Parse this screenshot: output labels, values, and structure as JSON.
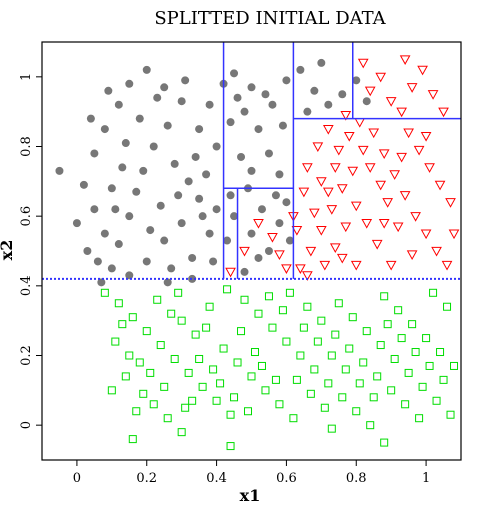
{
  "chart_data": {
    "type": "scatter",
    "title": "SPLITTED INITIAL DATA",
    "xlabel": "x1",
    "ylabel": "x2",
    "xlim": [
      -0.1,
      1.1
    ],
    "ylim": [
      -0.1,
      1.1
    ],
    "xticks": [
      0,
      0.2,
      0.4,
      0.6,
      0.8,
      1
    ],
    "xtick_labels": [
      "0",
      "0.2",
      "0.4",
      "0.6",
      "0.8",
      "1"
    ],
    "yticks": [
      0,
      0.2,
      0.4,
      0.6,
      0.8,
      1
    ],
    "ytick_labels": [
      "0",
      "0.2",
      "0.4",
      "0.6",
      "0.8",
      "1"
    ],
    "grid": false,
    "colors": {
      "gray": "#777777",
      "red": "#ff0000",
      "green": "#00dd00",
      "split_lines": "#3333ff",
      "frame": "#000000"
    },
    "split_lines": {
      "horizontal_dotted": {
        "y": 0.42,
        "x_from": -0.1,
        "x_to": 1.1
      },
      "vertical": [
        {
          "x": 0.42,
          "y_from": 0.42,
          "y_to": 1.1
        },
        {
          "x": 0.46,
          "y_from": 0.42,
          "y_to": 0.68
        },
        {
          "x": 0.62,
          "y_from": 0.42,
          "y_to": 1.1
        },
        {
          "x": 0.79,
          "y_from": 0.88,
          "y_to": 1.1
        }
      ],
      "horizontal": [
        {
          "y": 0.68,
          "x_from": 0.42,
          "x_to": 0.62
        },
        {
          "y": 0.88,
          "x_from": 0.62,
          "x_to": 1.1
        }
      ]
    },
    "series": [
      {
        "marker": "filled-circle",
        "color": "#777777",
        "points": [
          [
            -0.05,
            0.73
          ],
          [
            0.02,
            0.69
          ],
          [
            0.05,
            0.62
          ],
          [
            0.08,
            0.55
          ],
          [
            0.03,
            0.5
          ],
          [
            0.1,
            0.45
          ],
          [
            0.12,
            0.52
          ],
          [
            0.15,
            0.6
          ],
          [
            0.1,
            0.68
          ],
          [
            0.05,
            0.78
          ],
          [
            0.08,
            0.85
          ],
          [
            0.12,
            0.92
          ],
          [
            0.15,
            0.98
          ],
          [
            0.2,
            1.02
          ],
          [
            0.25,
            0.97
          ],
          [
            0.3,
            0.93
          ],
          [
            0.18,
            0.88
          ],
          [
            0.22,
            0.8
          ],
          [
            0.28,
            0.75
          ],
          [
            0.32,
            0.7
          ],
          [
            0.35,
            0.65
          ],
          [
            0.3,
            0.58
          ],
          [
            0.25,
            0.53
          ],
          [
            0.2,
            0.47
          ],
          [
            0.15,
            0.43
          ],
          [
            0.27,
            0.45
          ],
          [
            0.33,
            0.48
          ],
          [
            0.38,
            0.55
          ],
          [
            0.4,
            0.62
          ],
          [
            0.37,
            0.72
          ],
          [
            0.4,
            0.8
          ],
          [
            0.35,
            0.85
          ],
          [
            0.38,
            0.92
          ],
          [
            0.42,
            0.98
          ],
          [
            0.45,
            1.01
          ],
          [
            0.5,
            0.97
          ],
          [
            0.48,
            0.9
          ],
          [
            0.52,
            0.85
          ],
          [
            0.55,
            0.78
          ],
          [
            0.58,
            0.72
          ],
          [
            0.5,
            0.73
          ],
          [
            0.47,
            0.77
          ],
          [
            0.44,
            0.66
          ],
          [
            0.45,
            0.6
          ],
          [
            0.5,
            0.55
          ],
          [
            0.52,
            0.48
          ],
          [
            0.48,
            0.44
          ],
          [
            0.55,
            0.5
          ],
          [
            0.58,
            0.58
          ],
          [
            0.6,
            0.64
          ],
          [
            0.56,
            0.92
          ],
          [
            0.6,
            0.99
          ],
          [
            0.64,
            1.02
          ],
          [
            0.68,
            0.96
          ],
          [
            0.72,
            0.92
          ],
          [
            0.76,
            0.95
          ],
          [
            0.8,
            0.99
          ],
          [
            0.83,
            0.93
          ],
          [
            0.7,
            1.04
          ],
          [
            0.66,
            0.9
          ],
          [
            0.0,
            0.58
          ],
          [
            0.06,
            0.47
          ],
          [
            0.13,
            0.74
          ],
          [
            0.17,
            0.67
          ],
          [
            0.24,
            0.63
          ],
          [
            0.29,
            0.66
          ],
          [
            0.34,
            0.77
          ],
          [
            0.26,
            0.86
          ],
          [
            0.31,
            0.99
          ],
          [
            0.09,
            0.96
          ],
          [
            0.04,
            0.88
          ],
          [
            0.21,
            0.56
          ],
          [
            0.14,
            0.81
          ],
          [
            0.39,
            0.47
          ],
          [
            0.43,
            0.53
          ],
          [
            0.36,
            0.6
          ],
          [
            0.19,
            0.73
          ],
          [
            0.23,
            0.94
          ],
          [
            0.11,
            0.62
          ],
          [
            0.07,
            0.41
          ],
          [
            0.26,
            0.41
          ],
          [
            0.33,
            0.42
          ],
          [
            0.44,
            0.87
          ],
          [
            0.53,
            0.62
          ],
          [
            0.57,
            0.66
          ],
          [
            0.49,
            0.68
          ],
          [
            0.46,
            0.94
          ],
          [
            0.54,
            0.95
          ],
          [
            0.59,
            0.86
          ],
          [
            0.61,
            0.53
          ]
        ]
      },
      {
        "marker": "open-triangle-down",
        "color": "#ff0000",
        "points": [
          [
            0.64,
            0.45
          ],
          [
            0.67,
            0.5
          ],
          [
            0.7,
            0.56
          ],
          [
            0.73,
            0.62
          ],
          [
            0.76,
            0.68
          ],
          [
            0.79,
            0.73
          ],
          [
            0.82,
            0.79
          ],
          [
            0.85,
            0.84
          ],
          [
            0.88,
            0.78
          ],
          [
            0.91,
            0.72
          ],
          [
            0.94,
            0.66
          ],
          [
            0.97,
            0.6
          ],
          [
            1.0,
            0.55
          ],
          [
            1.03,
            0.5
          ],
          [
            1.06,
            0.46
          ],
          [
            0.9,
            0.46
          ],
          [
            0.86,
            0.52
          ],
          [
            0.83,
            0.58
          ],
          [
            0.8,
            0.63
          ],
          [
            0.77,
            0.57
          ],
          [
            0.74,
            0.51
          ],
          [
            0.71,
            0.46
          ],
          [
            0.68,
            0.61
          ],
          [
            0.65,
            0.67
          ],
          [
            0.66,
            0.74
          ],
          [
            0.69,
            0.8
          ],
          [
            0.72,
            0.85
          ],
          [
            0.75,
            0.79
          ],
          [
            0.78,
            0.83
          ],
          [
            0.81,
            0.87
          ],
          [
            0.84,
            0.96
          ],
          [
            0.87,
            1.0
          ],
          [
            0.9,
            0.93
          ],
          [
            0.93,
            0.9
          ],
          [
            0.96,
            0.97
          ],
          [
            0.99,
            1.02
          ],
          [
            1.02,
            0.95
          ],
          [
            1.05,
            0.9
          ],
          [
            0.95,
            0.84
          ],
          [
            0.98,
            0.79
          ],
          [
            1.01,
            0.74
          ],
          [
            1.04,
            0.69
          ],
          [
            1.07,
            0.64
          ],
          [
            0.92,
            0.57
          ],
          [
            0.89,
            0.64
          ],
          [
            0.63,
            0.56
          ],
          [
            0.66,
            0.43
          ],
          [
            0.8,
            0.46
          ],
          [
            0.96,
            0.49
          ],
          [
            1.08,
            0.55
          ],
          [
            0.7,
            0.7
          ],
          [
            0.74,
            0.74
          ],
          [
            0.87,
            0.69
          ],
          [
            0.84,
            0.74
          ],
          [
            0.77,
            0.89
          ],
          [
            0.82,
            1.04
          ],
          [
            0.94,
            1.05
          ],
          [
            0.44,
            0.44
          ],
          [
            0.48,
            0.5
          ],
          [
            0.52,
            0.58
          ],
          [
            0.56,
            0.54
          ],
          [
            0.6,
            0.45
          ],
          [
            0.58,
            0.49
          ],
          [
            0.62,
            0.6
          ],
          [
            0.72,
            0.67
          ],
          [
            0.93,
            0.77
          ],
          [
            1.0,
            0.83
          ],
          [
            0.76,
            0.48
          ],
          [
            0.88,
            0.58
          ]
        ]
      },
      {
        "marker": "open-square",
        "color": "#00dd00",
        "points": [
          [
            0.08,
            0.38
          ],
          [
            0.12,
            0.35
          ],
          [
            0.16,
            0.31
          ],
          [
            0.2,
            0.27
          ],
          [
            0.24,
            0.23
          ],
          [
            0.28,
            0.19
          ],
          [
            0.32,
            0.15
          ],
          [
            0.36,
            0.11
          ],
          [
            0.4,
            0.07
          ],
          [
            0.44,
            0.03
          ],
          [
            0.48,
            0.36
          ],
          [
            0.52,
            0.32
          ],
          [
            0.56,
            0.28
          ],
          [
            0.6,
            0.24
          ],
          [
            0.64,
            0.2
          ],
          [
            0.68,
            0.16
          ],
          [
            0.72,
            0.12
          ],
          [
            0.76,
            0.08
          ],
          [
            0.8,
            0.04
          ],
          [
            0.84,
            0.0
          ],
          [
            0.88,
            0.37
          ],
          [
            0.92,
            0.33
          ],
          [
            0.96,
            0.29
          ],
          [
            1.0,
            0.25
          ],
          [
            1.04,
            0.21
          ],
          [
            1.08,
            0.17
          ],
          [
            0.1,
            0.1
          ],
          [
            0.14,
            0.14
          ],
          [
            0.18,
            0.18
          ],
          [
            0.22,
            0.06
          ],
          [
            0.26,
            0.02
          ],
          [
            0.3,
            0.3
          ],
          [
            0.34,
            0.26
          ],
          [
            0.38,
            0.34
          ],
          [
            0.42,
            0.22
          ],
          [
            0.46,
            0.18
          ],
          [
            0.5,
            0.14
          ],
          [
            0.54,
            0.1
          ],
          [
            0.58,
            0.06
          ],
          [
            0.62,
            0.02
          ],
          [
            0.66,
            0.34
          ],
          [
            0.7,
            0.3
          ],
          [
            0.74,
            0.26
          ],
          [
            0.78,
            0.22
          ],
          [
            0.82,
            0.18
          ],
          [
            0.86,
            0.14
          ],
          [
            0.9,
            0.1
          ],
          [
            0.94,
            0.06
          ],
          [
            0.98,
            0.02
          ],
          [
            1.02,
            0.38
          ],
          [
            1.06,
            0.34
          ],
          [
            0.11,
            0.24
          ],
          [
            0.15,
            0.2
          ],
          [
            0.19,
            0.09
          ],
          [
            0.23,
            0.36
          ],
          [
            0.27,
            0.32
          ],
          [
            0.31,
            0.05
          ],
          [
            0.35,
            0.19
          ],
          [
            0.39,
            0.16
          ],
          [
            0.43,
            0.39
          ],
          [
            0.47,
            0.27
          ],
          [
            0.51,
            0.21
          ],
          [
            0.55,
            0.37
          ],
          [
            0.59,
            0.33
          ],
          [
            0.63,
            0.13
          ],
          [
            0.67,
            0.09
          ],
          [
            0.71,
            0.05
          ],
          [
            0.75,
            0.35
          ],
          [
            0.79,
            0.31
          ],
          [
            0.83,
            0.27
          ],
          [
            0.87,
            0.23
          ],
          [
            0.91,
            0.19
          ],
          [
            0.95,
            0.15
          ],
          [
            0.99,
            0.11
          ],
          [
            1.03,
            0.07
          ],
          [
            1.07,
            0.03
          ],
          [
            0.13,
            0.29
          ],
          [
            0.17,
            0.04
          ],
          [
            0.21,
            0.15
          ],
          [
            0.25,
            0.11
          ],
          [
            0.29,
            0.38
          ],
          [
            0.33,
            0.07
          ],
          [
            0.37,
            0.28
          ],
          [
            0.41,
            0.12
          ],
          [
            0.45,
            0.08
          ],
          [
            0.49,
            0.04
          ],
          [
            0.53,
            0.17
          ],
          [
            0.57,
            0.13
          ],
          [
            0.61,
            0.38
          ],
          [
            0.65,
            0.28
          ],
          [
            0.69,
            0.24
          ],
          [
            0.73,
            0.2
          ],
          [
            0.77,
            0.16
          ],
          [
            0.81,
            0.12
          ],
          [
            0.85,
            0.08
          ],
          [
            0.89,
            0.29
          ],
          [
            0.93,
            0.25
          ],
          [
            0.97,
            0.21
          ],
          [
            1.01,
            0.17
          ],
          [
            1.05,
            0.13
          ],
          [
            0.16,
            -0.04
          ],
          [
            0.44,
            -0.06
          ],
          [
            0.88,
            -0.05
          ],
          [
            0.73,
            -0.01
          ],
          [
            0.3,
            -0.02
          ]
        ]
      }
    ]
  }
}
